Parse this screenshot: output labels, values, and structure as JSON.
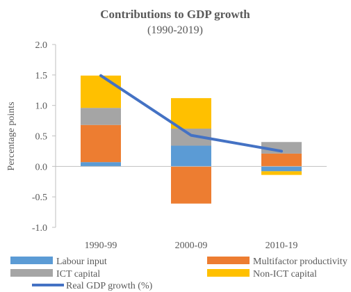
{
  "chart_data": {
    "type": "bar",
    "stacked": true,
    "title": "Contributions to GDP growth",
    "subtitle": "(1990-2019)",
    "ylabel": "Percentage points",
    "xlabel": "",
    "ylim": [
      -1.0,
      2.0
    ],
    "yticks": [
      "2.0",
      "1.5",
      "1.0",
      "0.5",
      "0.0",
      "-0.5",
      "-1.0"
    ],
    "ytick_values": [
      2.0,
      1.5,
      1.0,
      0.5,
      0.0,
      -0.5,
      -1.0
    ],
    "categories": [
      "1990-99",
      "2000-09",
      "2010-19"
    ],
    "series": [
      {
        "name": "Labour input",
        "color": "#5B9BD5",
        "values": [
          0.07,
          0.34,
          -0.08
        ]
      },
      {
        "name": "Multifactor productivity",
        "color": "#ED7D31",
        "values": [
          0.61,
          -0.61,
          0.21
        ]
      },
      {
        "name": "ICT capital",
        "color": "#A5A5A5",
        "values": [
          0.28,
          0.28,
          0.19
        ]
      },
      {
        "name": "Non-ICT capital",
        "color": "#FFC000",
        "values": [
          0.53,
          0.5,
          -0.06
        ]
      }
    ],
    "line": {
      "name": "Real GDP growth (%)",
      "color": "#4472C4",
      "values": [
        1.49,
        0.51,
        0.25
      ]
    },
    "grid": false,
    "legend_position": "bottom"
  }
}
